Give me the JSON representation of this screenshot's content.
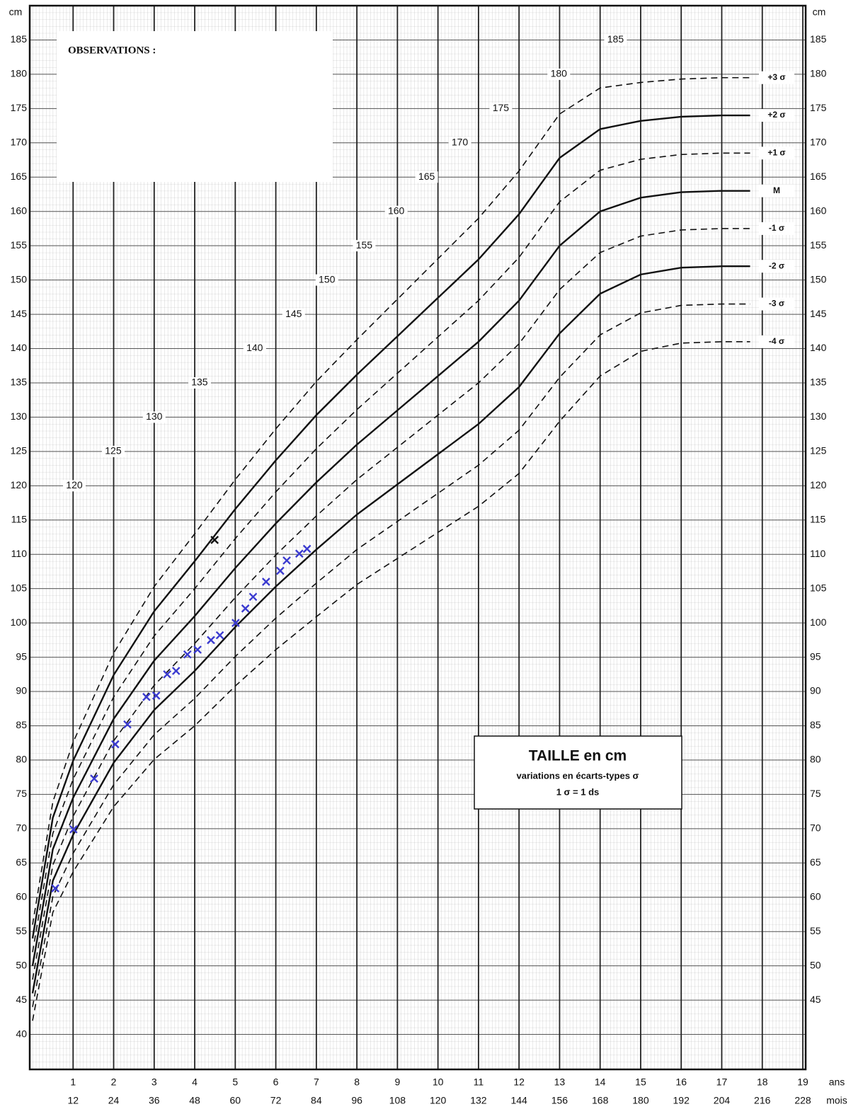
{
  "chart_data": {
    "type": "line",
    "y_unit": "cm",
    "x_unit_top": "ans",
    "x_unit_bottom": "mois",
    "xlim": [
      0,
      19
    ],
    "xticks": [
      1,
      2,
      3,
      4,
      5,
      6,
      7,
      8,
      9,
      10,
      11,
      12,
      13,
      14,
      15,
      16,
      17,
      18,
      19
    ],
    "month_ticks": [
      12,
      24,
      36,
      48,
      60,
      72,
      84,
      96,
      108,
      120,
      132,
      144,
      156,
      168,
      180,
      192,
      204,
      216,
      228
    ],
    "ylim": [
      35,
      190
    ],
    "yticks": [
      40,
      45,
      50,
      55,
      60,
      65,
      70,
      75,
      80,
      85,
      90,
      95,
      100,
      105,
      110,
      115,
      120,
      125,
      130,
      135,
      140,
      145,
      150,
      155,
      160,
      165,
      170,
      175,
      180,
      185
    ],
    "y2lim": [
      35,
      190
    ],
    "y2ticks": [
      45,
      50,
      55,
      60,
      65,
      70,
      75,
      80,
      85,
      90,
      95,
      100,
      105,
      110,
      115,
      120,
      125,
      130,
      135,
      140,
      145,
      150,
      155,
      160,
      165,
      170,
      175,
      180,
      185
    ],
    "grid": true,
    "observations_label": "OBSERVATIONS :",
    "info_box": {
      "title": "TAILLE en cm",
      "subtitle": "variations en écarts-types σ",
      "note": "1 σ = 1 ds"
    },
    "x": [
      0,
      0.5,
      1,
      2,
      3,
      4,
      5,
      6,
      7,
      8,
      9,
      10,
      11,
      12,
      13,
      14,
      15,
      16,
      17,
      17.7
    ],
    "series": [
      {
        "name": "+3 σ",
        "color": "#111111",
        "dashed": true,
        "values": [
          56,
          73.9,
          82.6,
          95.6,
          105.3,
          113,
          120.9,
          128.3,
          135.2,
          141.3,
          147.2,
          153.1,
          159,
          165.9,
          174.2,
          178,
          178.8,
          179.3,
          179.5,
          179.5
        ]
      },
      {
        "name": "+2 σ",
        "color": "#111111",
        "dashed": false,
        "values": [
          54,
          71.6,
          79.9,
          92.4,
          101.7,
          109,
          116.6,
          123.7,
          130.3,
          136.2,
          141.8,
          147.4,
          153,
          159.6,
          167.8,
          172,
          173.2,
          173.8,
          174,
          174
        ]
      },
      {
        "name": "+1 σ",
        "color": "#111111",
        "dashed": true,
        "values": [
          52,
          69.3,
          77.2,
          89.2,
          98.1,
          105,
          112.3,
          119.1,
          125.4,
          131.1,
          136.4,
          141.7,
          147,
          153.3,
          161.4,
          166,
          167.6,
          168.3,
          168.5,
          168.5
        ]
      },
      {
        "name": "M",
        "color": "#111111",
        "dashed": false,
        "values": [
          50,
          67,
          74.5,
          86,
          94.5,
          101,
          108,
          114.5,
          120.5,
          126,
          131,
          136,
          141,
          147,
          155,
          160,
          162,
          162.8,
          163,
          163
        ]
      },
      {
        "name": "-1 σ",
        "color": "#111111",
        "dashed": true,
        "values": [
          48,
          64.7,
          71.8,
          82.8,
          90.9,
          97,
          103.7,
          109.9,
          115.6,
          120.9,
          125.6,
          130.3,
          135,
          140.7,
          148.6,
          154,
          156.4,
          157.3,
          157.5,
          157.5
        ]
      },
      {
        "name": "-2 σ",
        "color": "#111111",
        "dashed": false,
        "values": [
          46,
          62.4,
          69.1,
          79.6,
          87.3,
          93,
          99.4,
          105.3,
          110.7,
          115.8,
          120.2,
          124.6,
          129,
          134.4,
          142.2,
          148,
          150.8,
          151.8,
          152,
          152
        ]
      },
      {
        "name": "-3 σ",
        "color": "#111111",
        "dashed": true,
        "values": [
          44,
          60.1,
          66.4,
          76.4,
          83.7,
          89,
          95.1,
          100.7,
          105.8,
          110.7,
          114.8,
          118.9,
          123,
          128.1,
          135.8,
          142,
          145.2,
          146.3,
          146.5,
          146.5
        ]
      },
      {
        "name": "-4 σ",
        "color": "#111111",
        "dashed": true,
        "values": [
          42,
          57.8,
          63.7,
          73.2,
          80.1,
          85,
          90.8,
          96.1,
          100.9,
          105.6,
          109.4,
          113.2,
          117,
          121.8,
          129.4,
          136,
          139.6,
          140.8,
          141,
          141
        ]
      }
    ],
    "reference_labels": {
      "x": [
        1.03,
        1.99,
        3.0,
        4.12,
        5.48,
        6.44,
        7.26,
        8.18,
        8.97,
        9.72,
        10.54,
        11.55,
        12.98,
        14.38
      ],
      "values": [
        120,
        125,
        130,
        135,
        140,
        145,
        150,
        155,
        160,
        165,
        170,
        175,
        180,
        185
      ]
    },
    "measurements": {
      "color": "#3b3bd0",
      "x": [
        0.56,
        1.01,
        1.52,
        2.04,
        2.34,
        2.81,
        3.05,
        3.32,
        3.54,
        3.82,
        4.07,
        4.4,
        4.62,
        5.01,
        5.25,
        5.44,
        5.76,
        6.11,
        6.27,
        6.58,
        6.77
      ],
      "values": [
        61.3,
        69.9,
        77.3,
        82.3,
        85.2,
        89.2,
        89.4,
        92.5,
        93,
        95.4,
        96.1,
        97.5,
        98.2,
        100,
        102.1,
        103.8,
        106,
        107.6,
        109.1,
        110.1,
        110.8
      ]
    },
    "extra_mark": {
      "color": "#111111",
      "x": [
        4.49
      ],
      "values": [
        112.1
      ]
    }
  }
}
